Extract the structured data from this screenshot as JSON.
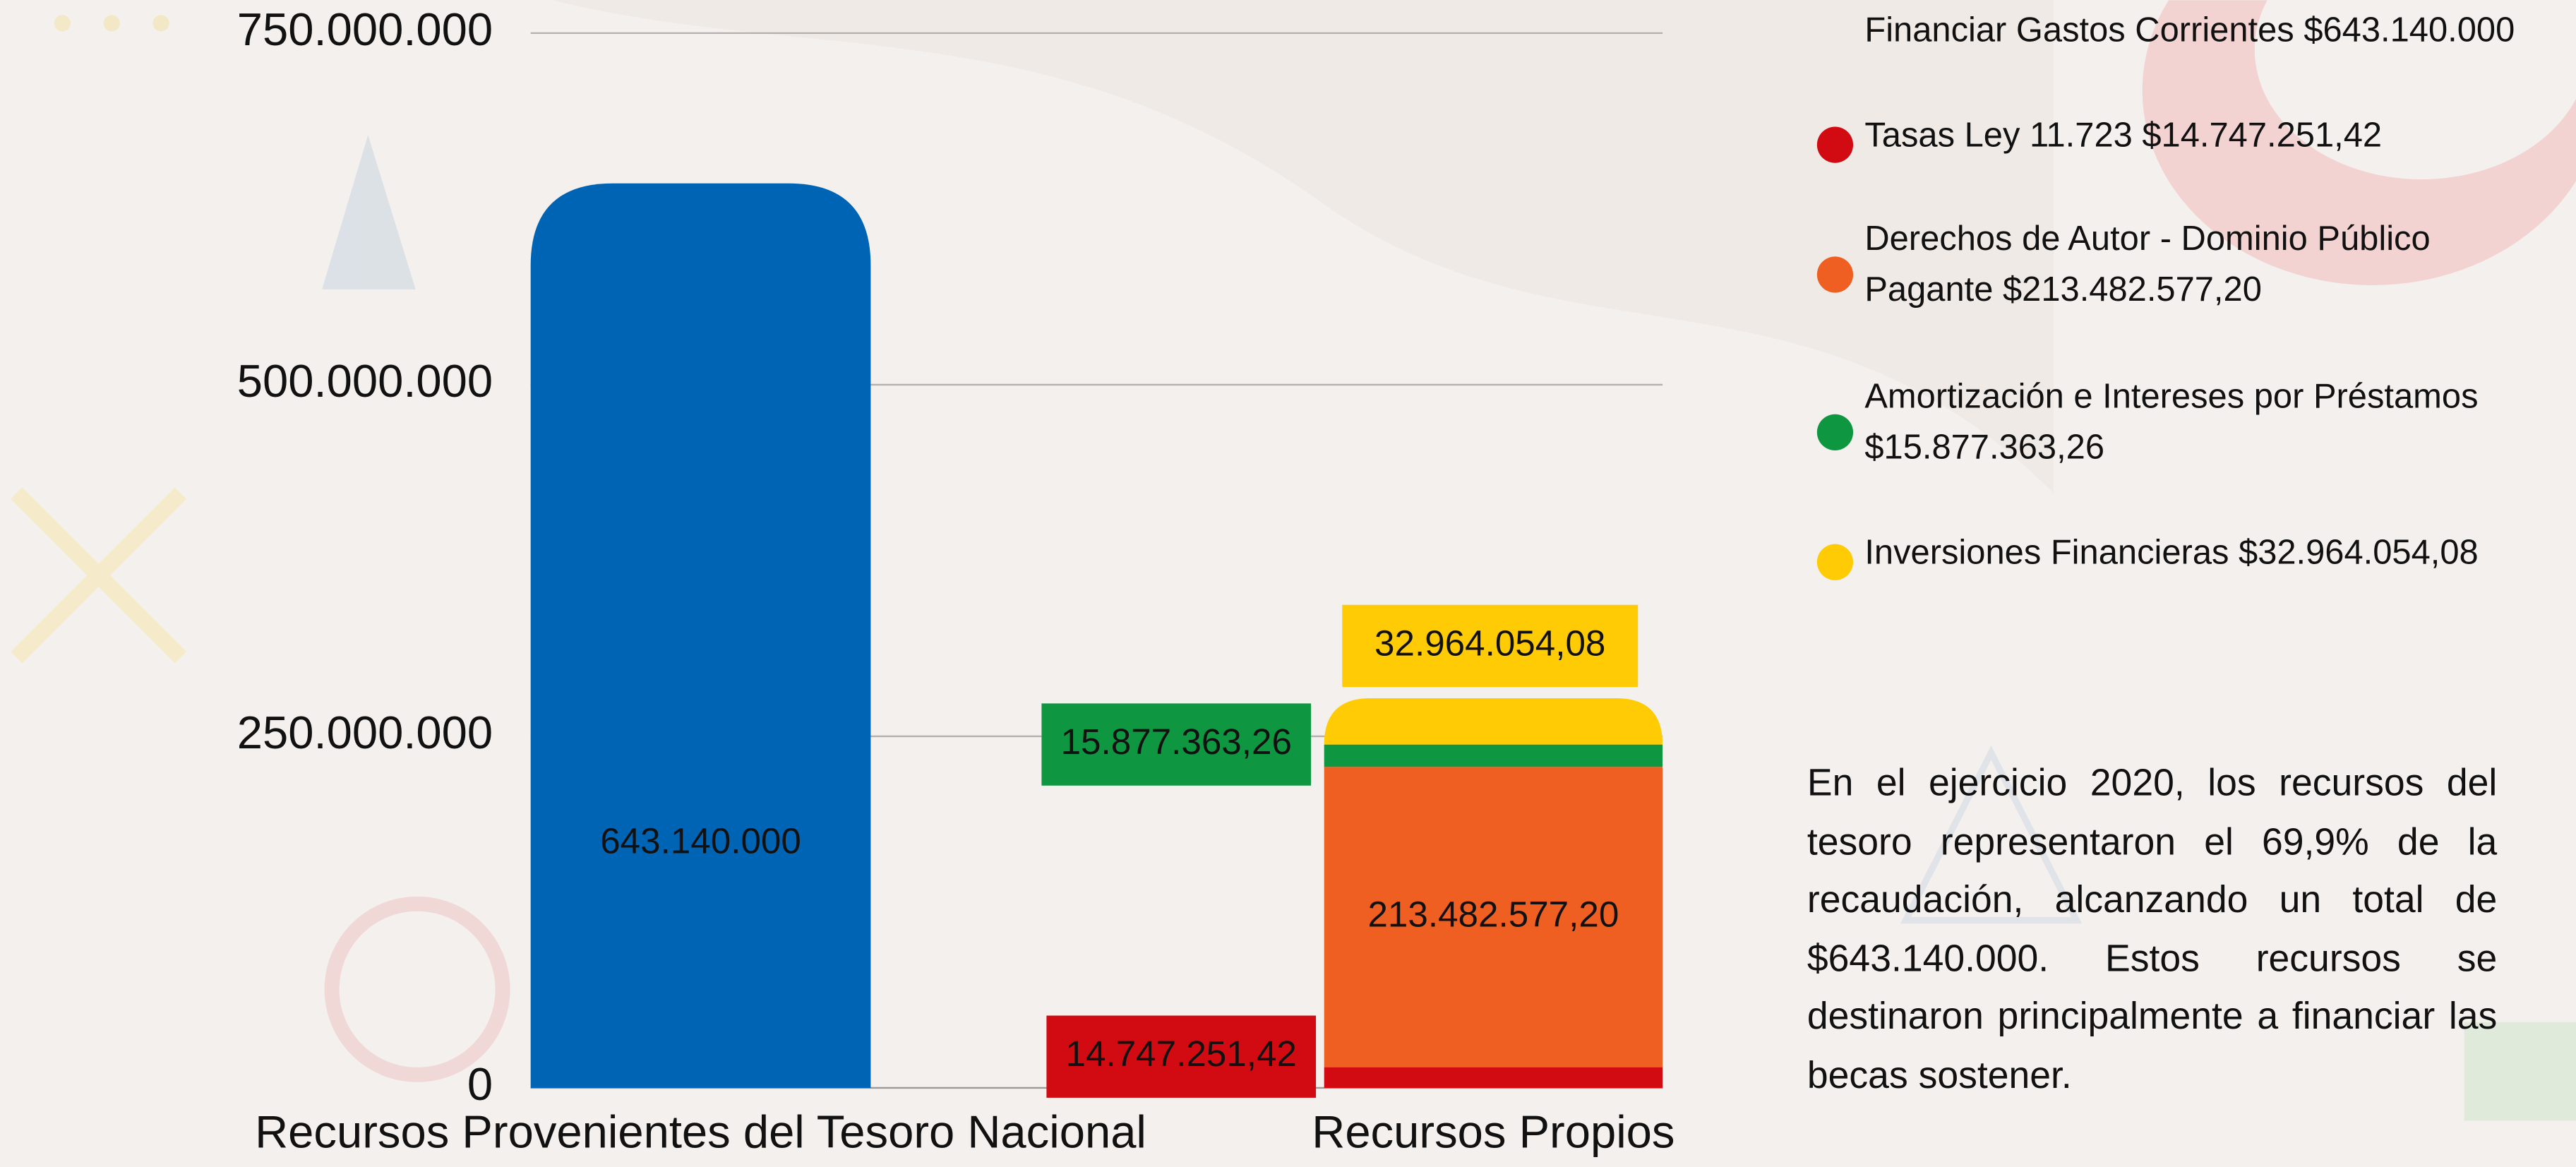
{
  "chart_data": {
    "type": "bar",
    "stacked": true,
    "categories": [
      "Recursos Provenientes del Tesoro Nacional",
      "Recursos Propios"
    ],
    "series": [
      {
        "name": "Financiar Gastos Corrientes $643.140.000",
        "color": "#0064b5",
        "values": [
          643140000,
          null
        ],
        "value_labels": [
          "643.140.000",
          null
        ]
      },
      {
        "name": "Tasas Ley 11.723 $14.747.251,42",
        "color": "#d20a11",
        "values": [
          null,
          14747251.42
        ],
        "value_labels": [
          null,
          "14.747.251,42"
        ]
      },
      {
        "name": "Derechos de Autor - Dominio Público Pagante $213.482.577,20",
        "color": "#ee5f21",
        "values": [
          null,
          213482577.2
        ],
        "value_labels": [
          null,
          "213.482.577,20"
        ]
      },
      {
        "name": "Amortización e Intereses por Préstamos $15.877.363,26",
        "color": "#0f9640",
        "values": [
          null,
          15877363.26
        ],
        "value_labels": [
          null,
          "15.877.363,26"
        ]
      },
      {
        "name": "Inversiones Financieras $32.964.054,08",
        "color": "#ffcb05",
        "values": [
          null,
          32964054.08
        ],
        "value_labels": [
          null,
          "32.964.054,08"
        ]
      }
    ],
    "ylim": [
      0,
      750000000
    ],
    "yticks": [
      0,
      {
        "value": 250000000,
        "label": "250.000.000"
      },
      {
        "value": 500000000,
        "label": "500.000.000"
      },
      {
        "value": 750000000,
        "label": "750.000.000"
      }
    ],
    "grid": true,
    "note": "En el ejercicio 2020, los recursos del tesoro representaron el 69,9% de la recaudación, alcanzando un total de $643.140.000. Estos recursos se destinaron principalmente a financiar las becas sostener."
  }
}
